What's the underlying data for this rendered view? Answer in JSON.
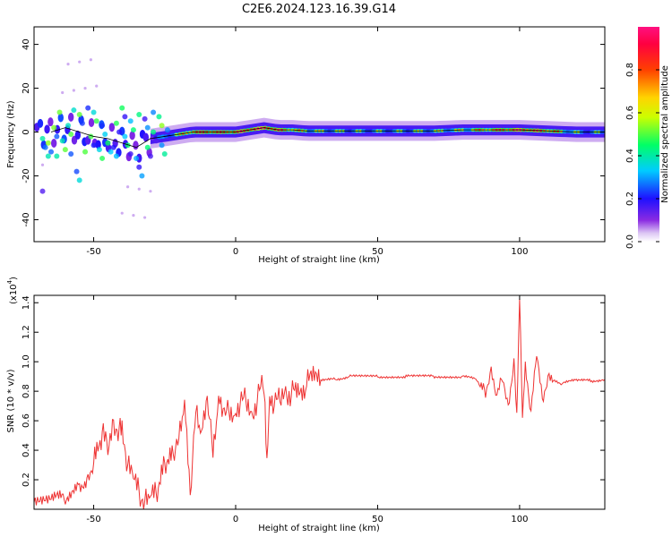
{
  "title": "C2E6.2024.123.16.39.G14",
  "colors": {
    "snr_line": "#ee3333",
    "axis": "#000000",
    "background": "#ffffff"
  },
  "chart_data": [
    {
      "type": "heatmap",
      "xlabel": "Height of straight line (km)",
      "ylabel": "Frequency (Hz)",
      "xlim": [
        -71,
        130
      ],
      "ylim": [
        -50,
        48
      ],
      "xticks": [
        -50,
        0,
        50,
        100
      ],
      "yticks": [
        -40,
        -20,
        0,
        20,
        40
      ],
      "colorbar": {
        "label": "Normalized spectral amplitude",
        "range": [
          0.0,
          1.0
        ],
        "ticks": [
          0.0,
          0.2,
          0.4,
          0.6,
          0.8
        ],
        "colormap": "rainbow (white → purple → blue → cyan → green → yellow → red → magenta)"
      },
      "centerline_profile": {
        "height_km": [
          -65,
          -60,
          -55,
          -50,
          -45,
          -40,
          -35,
          -30,
          -25,
          -20,
          -15,
          -10,
          -5,
          0,
          5,
          10,
          15,
          20,
          25,
          30,
          40,
          50,
          60,
          70,
          80,
          90,
          100,
          110,
          120,
          130
        ],
        "frequency_hz": [
          0,
          2,
          0,
          -2,
          -3,
          -5,
          -7,
          -3,
          -2,
          -1,
          0,
          0,
          0,
          0,
          1,
          2,
          1,
          1,
          0.5,
          0.5,
          0.5,
          0.5,
          0.5,
          0.5,
          1,
          1,
          1,
          0.5,
          0,
          0
        ],
        "amplitude": [
          0.3,
          0.35,
          0.3,
          0.3,
          0.35,
          0.3,
          0.2,
          0.3,
          0.45,
          0.6,
          0.8,
          0.85,
          0.8,
          0.85,
          0.9,
          0.95,
          0.85,
          0.7,
          0.6,
          0.55,
          0.5,
          0.5,
          0.5,
          0.55,
          0.6,
          0.75,
          0.9,
          0.8,
          0.5,
          0.45
        ]
      }
    },
    {
      "type": "line",
      "xlabel": "Height of straight line (km)",
      "ylabel": "SNR (10 * v/v)",
      "scale_label": "(x10",
      "scale_exponent": "4",
      "xlim": [
        -71,
        130
      ],
      "ylim": [
        0.0,
        1.45
      ],
      "xticks": [
        -50,
        0,
        50,
        100
      ],
      "yticks": [
        0.2,
        0.4,
        0.6,
        0.8,
        1.0,
        1.2,
        1.4
      ],
      "series": [
        {
          "x": [
            -71,
            -65,
            -60,
            -55,
            -52,
            -50,
            -47,
            -45,
            -43,
            -41,
            -40,
            -38,
            -36,
            -34,
            -32,
            -30,
            -28,
            -25,
            -22,
            -20,
            -18,
            -16,
            -14,
            -12,
            -10,
            -8,
            -6,
            -4,
            -2,
            0,
            2,
            4,
            6,
            8,
            10,
            11,
            12,
            14,
            16,
            18,
            20,
            25,
            30,
            35,
            40,
            50,
            60,
            70,
            80,
            85,
            88,
            90,
            92,
            94,
            96,
            98,
            99,
            100,
            101,
            102,
            104,
            106,
            108,
            110,
            115,
            120,
            125,
            130
          ],
          "y": [
            0.05,
            0.06,
            0.08,
            0.15,
            0.22,
            0.3,
            0.5,
            0.4,
            0.6,
            0.55,
            0.6,
            0.3,
            0.2,
            0.12,
            0.08,
            0.06,
            0.1,
            0.3,
            0.35,
            0.55,
            0.7,
            0.05,
            0.75,
            0.5,
            0.7,
            0.45,
            0.75,
            0.6,
            0.7,
            0.65,
            0.7,
            0.75,
            0.65,
            0.75,
            0.85,
            0.25,
            0.8,
            0.7,
            0.75,
            0.8,
            0.8,
            0.85,
            0.88,
            0.88,
            0.9,
            0.9,
            0.9,
            0.9,
            0.9,
            0.88,
            0.8,
            0.95,
            0.75,
            0.9,
            0.7,
            1.0,
            0.65,
            1.45,
            0.6,
            1.0,
            0.65,
            1.05,
            0.75,
            0.9,
            0.85,
            0.88,
            0.87,
            0.88
          ]
        }
      ]
    }
  ]
}
